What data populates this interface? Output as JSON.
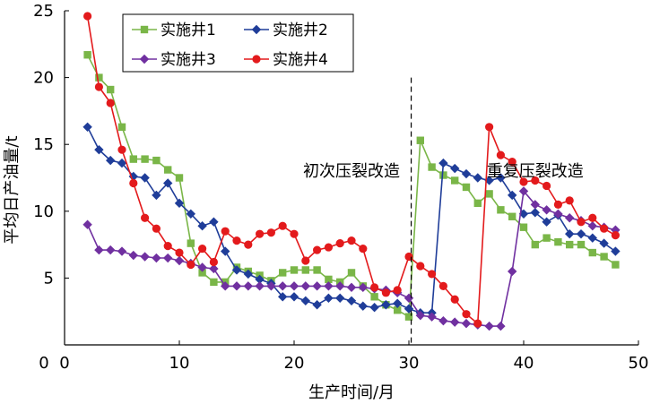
{
  "chart_data": {
    "type": "line",
    "xlabel": "生产时间/月",
    "ylabel": "平均日产油量/t",
    "xlim": [
      0,
      50
    ],
    "ylim": [
      0,
      25
    ],
    "x_ticks": [
      "0",
      "10",
      "20",
      "30",
      "40",
      "50"
    ],
    "y_ticks": [
      "5",
      "10",
      "15",
      "20",
      "25"
    ],
    "grid": false,
    "legend": "top-left",
    "annotations": [
      {
        "text": "初次压裂改造",
        "x": 25,
        "y": 13.0
      },
      {
        "text": "重复压裂改造",
        "x": 41,
        "y": 13.0
      }
    ],
    "divider_x": 30.2,
    "series": [
      {
        "name": "实施井1",
        "color": "#7ab648",
        "marker": "square",
        "x": [
          2,
          3,
          4,
          5,
          6,
          7,
          8,
          9,
          10,
          11,
          12,
          13,
          14,
          15,
          16,
          17,
          18,
          19,
          20,
          21,
          22,
          23,
          24,
          25,
          26,
          27,
          28,
          29,
          30,
          31,
          32,
          33,
          34,
          35,
          36,
          37,
          38,
          39,
          40,
          41,
          42,
          43,
          44,
          45,
          46,
          47,
          48
        ],
        "y": [
          21.7,
          20.0,
          19.1,
          16.3,
          13.9,
          13.9,
          13.8,
          13.1,
          12.5,
          7.6,
          5.4,
          4.7,
          4.7,
          5.8,
          5.5,
          5.2,
          4.8,
          5.4,
          5.6,
          5.6,
          5.6,
          4.9,
          4.7,
          5.4,
          4.4,
          3.6,
          3.0,
          2.6,
          2.1,
          15.3,
          13.3,
          12.7,
          12.3,
          11.8,
          10.6,
          11.3,
          10.1,
          9.6,
          8.8,
          7.5,
          8.0,
          7.7,
          7.5,
          7.5,
          6.9,
          6.6,
          6.0
        ]
      },
      {
        "name": "实施井2",
        "color": "#1f3d99",
        "marker": "diamond",
        "x": [
          2,
          3,
          4,
          5,
          6,
          7,
          8,
          9,
          10,
          11,
          12,
          13,
          14,
          15,
          16,
          17,
          18,
          19,
          20,
          21,
          22,
          23,
          24,
          25,
          26,
          27,
          28,
          29,
          30,
          31,
          32,
          33,
          34,
          35,
          36,
          37,
          38,
          39,
          40,
          41,
          42,
          43,
          44,
          45,
          46,
          47,
          48
        ],
        "y": [
          16.3,
          14.6,
          13.8,
          13.6,
          12.6,
          12.5,
          11.2,
          12.1,
          10.6,
          9.8,
          8.9,
          9.2,
          7.0,
          5.6,
          5.3,
          4.9,
          4.6,
          3.6,
          3.6,
          3.3,
          3.0,
          3.5,
          3.5,
          3.3,
          2.9,
          2.8,
          3.0,
          3.1,
          2.7,
          2.4,
          2.4,
          13.6,
          13.2,
          12.8,
          12.5,
          12.3,
          12.5,
          11.2,
          9.8,
          9.9,
          9.2,
          9.7,
          8.3,
          8.3,
          8.0,
          7.6,
          7.0
        ]
      },
      {
        "name": "实施井3",
        "color": "#7030a0",
        "marker": "diamond",
        "x": [
          2,
          3,
          4,
          5,
          6,
          7,
          8,
          9,
          10,
          11,
          12,
          13,
          14,
          15,
          16,
          17,
          18,
          19,
          20,
          21,
          22,
          23,
          24,
          25,
          26,
          27,
          28,
          29,
          30,
          31,
          32,
          33,
          34,
          35,
          36,
          37,
          38,
          39,
          40,
          41,
          42,
          43,
          44,
          45,
          46,
          47,
          48
        ],
        "y": [
          9.0,
          7.1,
          7.1,
          7.0,
          6.7,
          6.6,
          6.5,
          6.5,
          6.3,
          6.1,
          5.8,
          5.7,
          4.4,
          4.4,
          4.4,
          4.4,
          4.4,
          4.4,
          4.4,
          4.4,
          4.4,
          4.4,
          4.4,
          4.3,
          4.3,
          4.2,
          4.1,
          3.9,
          3.5,
          2.2,
          2.1,
          1.8,
          1.7,
          1.6,
          1.5,
          1.4,
          1.4,
          5.5,
          11.5,
          10.5,
          10.1,
          9.8,
          9.5,
          9.3,
          8.9,
          8.8,
          8.6
        ]
      },
      {
        "name": "实施井4",
        "color": "#e31a1c",
        "marker": "circle",
        "x": [
          2,
          3,
          4,
          5,
          6,
          7,
          8,
          9,
          10,
          11,
          12,
          13,
          14,
          15,
          16,
          17,
          18,
          19,
          20,
          21,
          22,
          23,
          24,
          25,
          26,
          27,
          28,
          29,
          30,
          31,
          32,
          33,
          34,
          35,
          36,
          37,
          38,
          39,
          40,
          41,
          42,
          43,
          44,
          45,
          46,
          47,
          48
        ],
        "y": [
          24.6,
          19.3,
          18.1,
          14.6,
          12.1,
          9.5,
          8.7,
          7.4,
          6.9,
          6.0,
          7.2,
          6.2,
          8.5,
          7.8,
          7.5,
          8.3,
          8.4,
          8.9,
          8.3,
          6.3,
          7.1,
          7.3,
          7.6,
          7.8,
          7.2,
          4.3,
          3.9,
          4.1,
          6.6,
          5.9,
          5.3,
          4.4,
          3.4,
          2.3,
          1.6,
          16.3,
          14.2,
          13.7,
          12.2,
          12.3,
          11.9,
          10.5,
          10.8,
          9.2,
          9.5,
          8.7,
          8.2
        ]
      }
    ]
  }
}
